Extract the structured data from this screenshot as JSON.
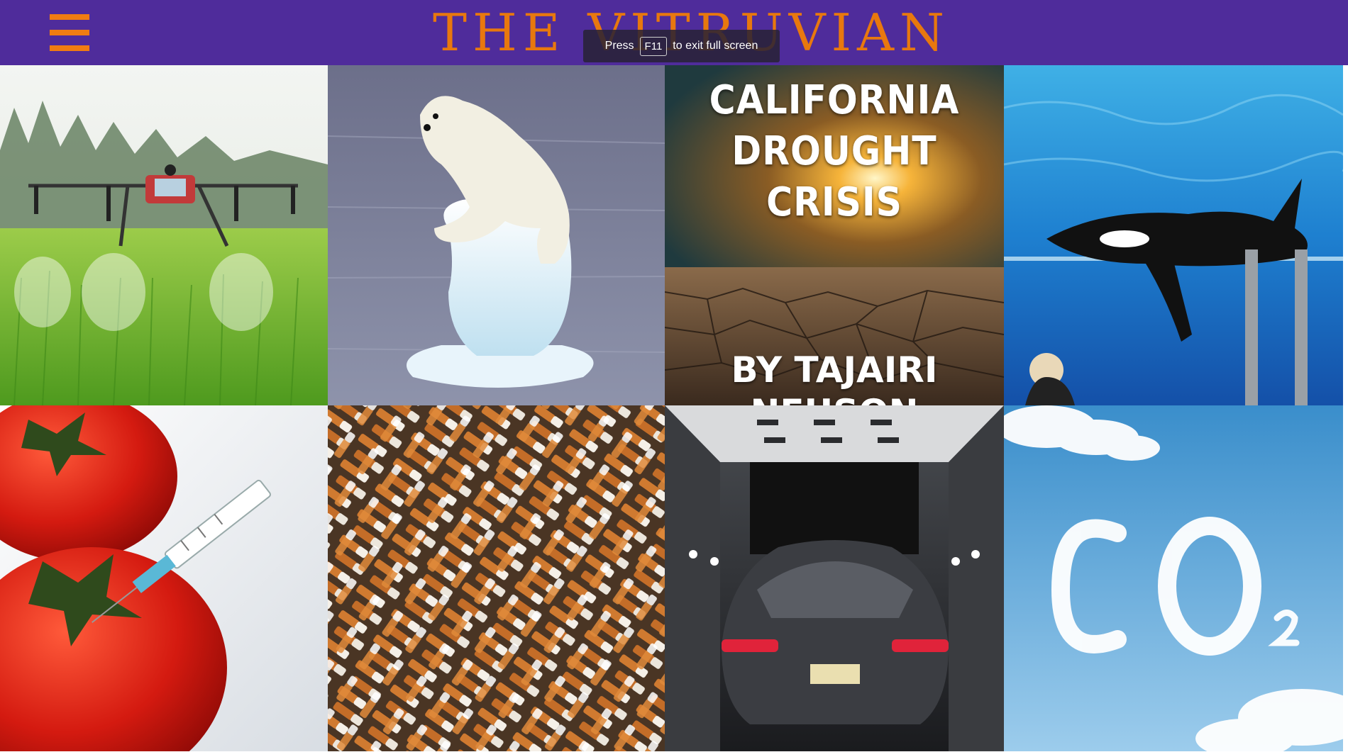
{
  "header": {
    "logo_text": "THE VITRUVIAN",
    "menu_icon": "hamburger-menu-icon",
    "background": "#4f2c9b",
    "accent": "#f07c12"
  },
  "fullscreen_toast": {
    "press": "Press",
    "key": "F11",
    "message": "to exit full screen"
  },
  "tiles": [
    {
      "id": "drone-crop-spraying",
      "image": "drone spraying green rice field"
    },
    {
      "id": "polar-bear-ice",
      "image": "polar bear on melting ice"
    },
    {
      "id": "california-drought",
      "image": "cracked earth at sunset",
      "title": "CALIFORNIA DROUGHT CRISIS",
      "byline": "BY TAJAIRI NEUSON"
    },
    {
      "id": "orca-tank",
      "image": "orca in aquarium tank"
    },
    {
      "id": "gmo-tomato",
      "image": "tomatoes with syringe"
    },
    {
      "id": "cigarette-butts",
      "image": "pile of cigarette butts"
    },
    {
      "id": "tesla-wind-tunnel",
      "image": "car in wind tunnel"
    },
    {
      "id": "co2-clouds",
      "image": "CO2 written in clouds"
    }
  ]
}
